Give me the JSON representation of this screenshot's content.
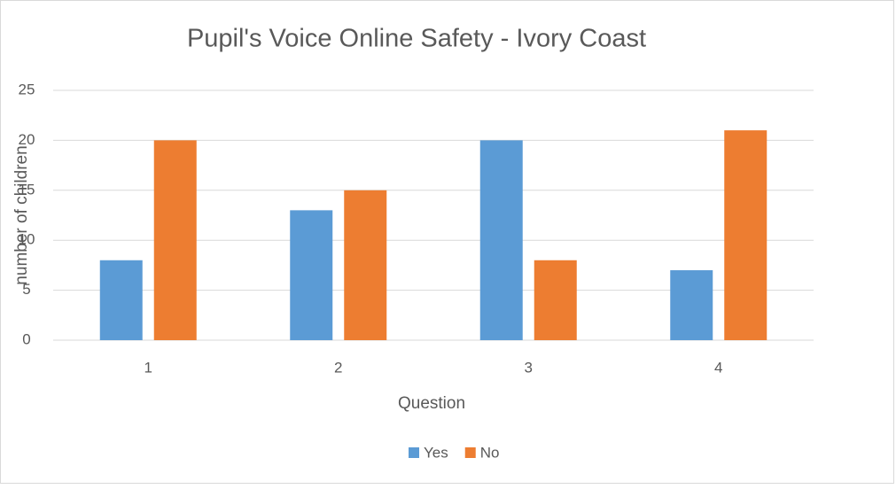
{
  "chart_data": {
    "type": "bar",
    "title": "Pupil's Voice Online Safety - Ivory Coast",
    "x_label": "Question",
    "y_label": "number of children",
    "categories": [
      "1",
      "2",
      "3",
      "4"
    ],
    "series": [
      {
        "name": "Yes",
        "color": "#5b9bd5",
        "values": [
          8,
          13,
          20,
          7
        ]
      },
      {
        "name": "No",
        "color": "#ed7d31",
        "values": [
          20,
          15,
          8,
          21
        ]
      }
    ],
    "ylim": [
      0,
      25
    ],
    "yticks": [
      0,
      5,
      10,
      15,
      20,
      25
    ],
    "grid": true,
    "legend": "bottom"
  }
}
